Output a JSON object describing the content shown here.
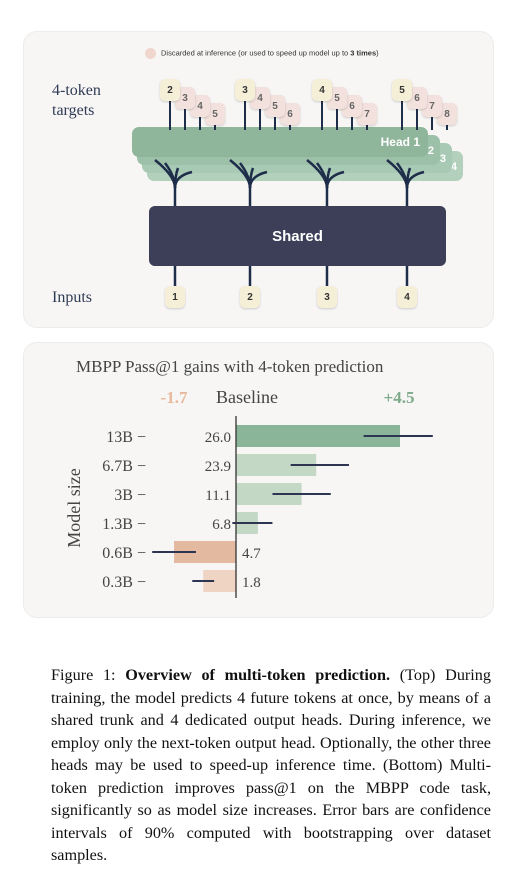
{
  "diagram": {
    "legend": {
      "text": "Discarded at inference (or used to speed up model up to ",
      "bold": "3 times",
      "suffix": ")"
    },
    "targets_label": [
      "4-token",
      "targets"
    ],
    "inputs_label": "Inputs",
    "shared_label": "Shared",
    "heads": [
      {
        "label": "Head 1",
        "color": "#8fb59b"
      },
      {
        "label": "2",
        "color": "#9cc0a8"
      },
      {
        "label": "3",
        "color": "#a8c9b3"
      },
      {
        "label": "4",
        "color": "#b3d0bc"
      }
    ],
    "inputs": [
      "1",
      "2",
      "3",
      "4"
    ],
    "target_groups": [
      [
        "2",
        "3",
        "4",
        "5"
      ],
      [
        "3",
        "4",
        "5",
        "6"
      ],
      [
        "4",
        "5",
        "6",
        "7"
      ],
      [
        "5",
        "6",
        "7",
        "8"
      ]
    ],
    "colors": {
      "token": "#f5efd8",
      "discarded": "#f3e1dd",
      "shared": "#3d3e58",
      "line": "#1e2d4a"
    }
  },
  "chart_data": {
    "type": "bar",
    "title": "MBPP Pass@1  gains with 4-token prediction",
    "ylabel": "Model size",
    "baseline_label": "Baseline",
    "min_label": "-1.7",
    "max_label": "+4.5",
    "xlim": [
      -1.7,
      4.5
    ],
    "categories": [
      "13B",
      "6.7B",
      "3B",
      "1.3B",
      "0.6B",
      "0.3B"
    ],
    "baseline_values": [
      "26.0",
      "23.9",
      "11.1",
      "6.8",
      "4.7",
      "1.8"
    ],
    "gains": [
      4.5,
      2.2,
      1.8,
      0.6,
      -1.7,
      -0.9
    ],
    "error_low": [
      3.5,
      1.5,
      1.0,
      -0.1,
      -2.3,
      -1.2
    ],
    "error_high": [
      5.4,
      3.1,
      2.6,
      1.0,
      -1.1,
      -0.6
    ],
    "colors": {
      "positive_strong": "#8bb598",
      "positive": "#c3d9c6",
      "negative": "#e3b9a0",
      "negative_light": "#efd4c4",
      "error": "#2d3552",
      "min_label": "#e8b89c",
      "max_label": "#7fab8a"
    }
  },
  "caption": {
    "prefix": "Figure 1: ",
    "bold": "Overview of multi-token prediction.",
    "text": " (Top) During training, the model predicts 4 future tokens at once, by means of a shared trunk and 4 dedicated output heads. During inference, we employ only the next-token output head. Optionally, the other three heads may be used to speed-up inference time. (Bottom) Multi-token prediction improves pass@1 on the MBPP code task, significantly so as model size increases. Error bars are confidence intervals of 90% computed with bootstrapping over dataset samples."
  }
}
